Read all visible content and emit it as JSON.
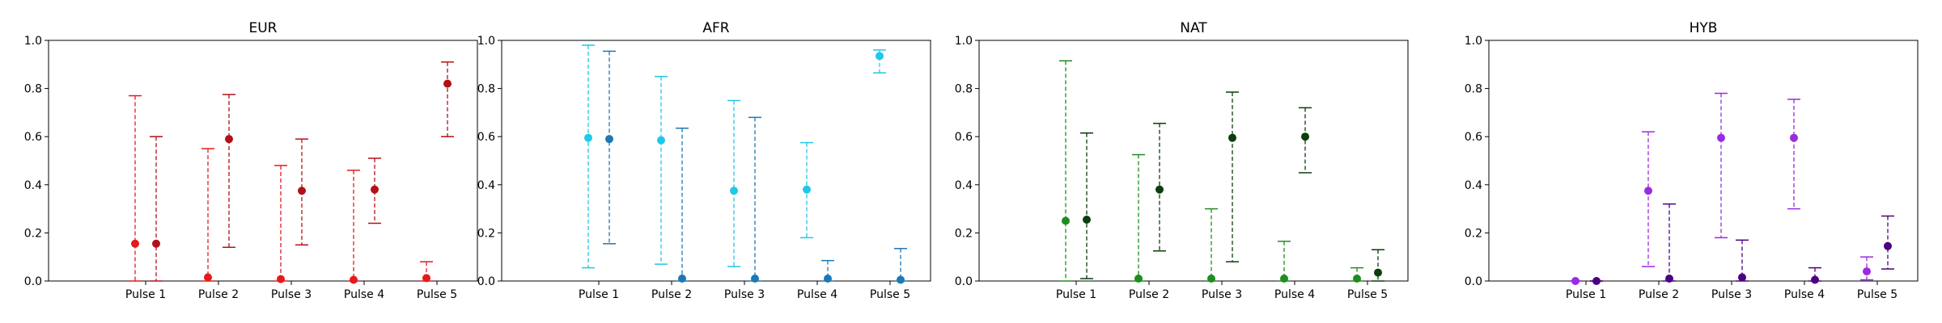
{
  "chart_data": [
    {
      "type": "errorbar",
      "title": "EUR",
      "xlabel": "",
      "ylabel": "",
      "ylim": [
        0,
        1
      ],
      "yticks": [
        "0.0",
        "0.2",
        "0.4",
        "0.6",
        "0.8",
        "1.0"
      ],
      "categories": [
        "Pulse 1",
        "Pulse 2",
        "Pulse 3",
        "Pulse 4",
        "Pulse 5"
      ],
      "grid": false,
      "series": [
        {
          "color": "#e41a1c",
          "values": [
            0.155,
            0.015,
            0.008,
            0.005,
            0.012
          ],
          "lower": [
            0.0,
            0.0,
            0.0,
            0.0,
            0.0
          ],
          "upper": [
            0.77,
            0.55,
            0.48,
            0.46,
            0.08
          ]
        },
        {
          "color": "#b2111a",
          "values": [
            0.155,
            0.59,
            0.375,
            0.38,
            0.82
          ],
          "lower": [
            0.0,
            0.14,
            0.15,
            0.24,
            0.6
          ],
          "upper": [
            0.6,
            0.775,
            0.59,
            0.51,
            0.91
          ]
        }
      ]
    },
    {
      "type": "errorbar",
      "title": "AFR",
      "xlabel": "",
      "ylabel": "",
      "ylim": [
        0,
        1
      ],
      "yticks": [
        "0.0",
        "0.2",
        "0.4",
        "0.6",
        "0.8",
        "1.0"
      ],
      "categories": [
        "Pulse 1",
        "Pulse 2",
        "Pulse 3",
        "Pulse 4",
        "Pulse 5"
      ],
      "grid": false,
      "series": [
        {
          "color": "#1ec8e8",
          "values": [
            0.595,
            0.585,
            0.375,
            0.38,
            0.935
          ],
          "lower": [
            0.055,
            0.07,
            0.06,
            0.18,
            0.865
          ],
          "upper": [
            0.98,
            0.85,
            0.75,
            0.575,
            0.96
          ]
        },
        {
          "color": "#1f77b4",
          "values": [
            0.59,
            0.01,
            0.01,
            0.01,
            0.005
          ],
          "lower": [
            0.155,
            0.0,
            0.0,
            0.0,
            0.0
          ],
          "upper": [
            0.955,
            0.635,
            0.68,
            0.085,
            0.135
          ]
        }
      ]
    },
    {
      "type": "errorbar",
      "title": "NAT",
      "xlabel": "",
      "ylabel": "",
      "ylim": [
        0,
        1
      ],
      "yticks": [
        "0.0",
        "0.2",
        "0.4",
        "0.6",
        "0.8",
        "1.0"
      ],
      "categories": [
        "Pulse 1",
        "Pulse 2",
        "Pulse 3",
        "Pulse 4",
        "Pulse 5"
      ],
      "grid": false,
      "series": [
        {
          "color": "#1f8c1f",
          "values": [
            0.25,
            0.01,
            0.01,
            0.01,
            0.01
          ],
          "lower": [
            0.0,
            0.0,
            0.0,
            0.0,
            0.0
          ],
          "upper": [
            0.915,
            0.525,
            0.3,
            0.165,
            0.055
          ]
        },
        {
          "color": "#0c3d0c",
          "values": [
            0.255,
            0.38,
            0.595,
            0.6,
            0.035
          ],
          "lower": [
            0.01,
            0.125,
            0.08,
            0.45,
            0.0
          ],
          "upper": [
            0.615,
            0.655,
            0.785,
            0.72,
            0.13
          ]
        }
      ]
    },
    {
      "type": "errorbar",
      "title": "HYB",
      "xlabel": "",
      "ylabel": "",
      "ylim": [
        0,
        1
      ],
      "yticks": [
        "0.0",
        "0.2",
        "0.4",
        "0.6",
        "0.8",
        "1.0"
      ],
      "categories": [
        "Pulse 1",
        "Pulse 2",
        "Pulse 3",
        "Pulse 4",
        "Pulse 5"
      ],
      "grid": false,
      "series": [
        {
          "color": "#9a2be0",
          "values": [
            0.0,
            0.375,
            0.595,
            0.595,
            0.04
          ],
          "lower": [
            0.0,
            0.06,
            0.18,
            0.3,
            0.005
          ],
          "upper": [
            0.0,
            0.62,
            0.78,
            0.755,
            0.1
          ]
        },
        {
          "color": "#4b0082",
          "values": [
            0.0,
            0.01,
            0.015,
            0.005,
            0.145
          ],
          "lower": [
            0.0,
            0.0,
            0.0,
            0.0,
            0.05
          ],
          "upper": [
            0.0,
            0.32,
            0.17,
            0.055,
            0.27
          ]
        }
      ]
    }
  ]
}
